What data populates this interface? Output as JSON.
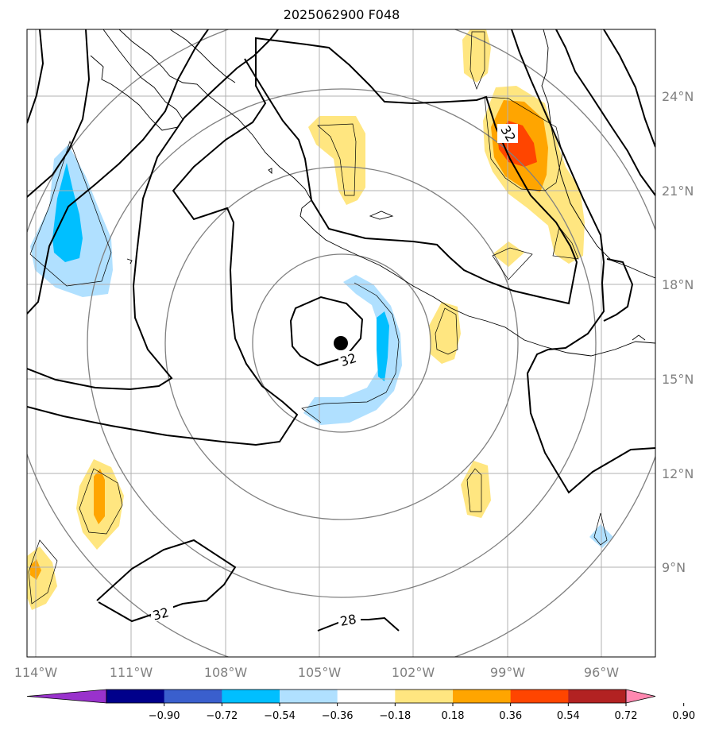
{
  "title": "2025062900 F048",
  "x_axis_labels": [
    "114°W",
    "111°W",
    "108°W",
    "105°W",
    "102°W",
    "99°W",
    "96°W"
  ],
  "y_axis_labels": [
    "24°N",
    "21°N",
    "18°N",
    "15°N",
    "12°N",
    "9°N"
  ],
  "contour_labels": [
    "32",
    "32",
    "32",
    "28"
  ],
  "colorbar": {
    "tick_labels": [
      "−0.90",
      "−0.72",
      "−0.54",
      "−0.36",
      "−0.18",
      "0.18",
      "0.36",
      "0.54",
      "0.72",
      "0.90"
    ],
    "colors": [
      "#9932cc",
      "#00008b",
      "#3a5fcd",
      "#00bfff",
      "#b0e0ff",
      "#ffffff",
      "#ffe680",
      "#ffa500",
      "#ff4500",
      "#b22222",
      "#ff88b0"
    ]
  },
  "marker": "storm-center"
}
